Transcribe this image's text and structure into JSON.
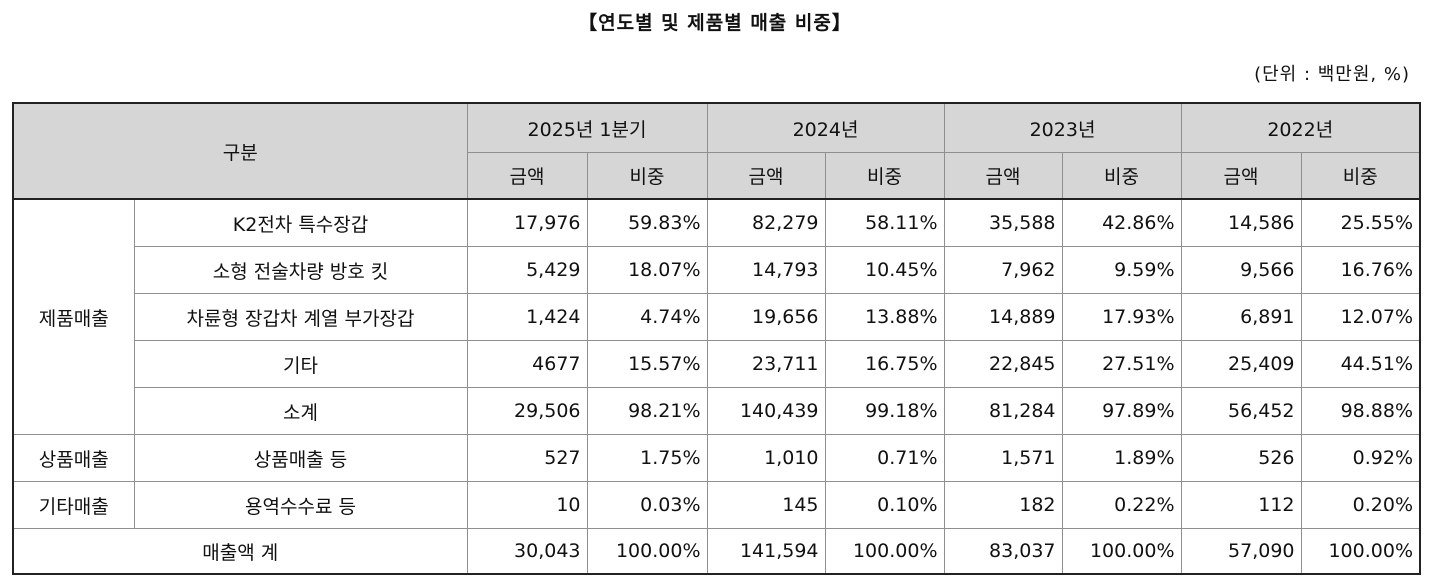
{
  "title": "【연도별 및 제품별 매출 비중】",
  "unit": "(단위 : 백만원, %)",
  "header": {
    "category": "구분",
    "periods": [
      "2025년 1분기",
      "2024년",
      "2023년",
      "2022년"
    ],
    "amount": "금액",
    "share": "비중"
  },
  "groups": {
    "product": "제품매출",
    "goods": "상품매출",
    "other": "기타매출"
  },
  "rows": [
    {
      "label": "K2전차 특수장갑",
      "cells": [
        "17,976",
        "59.83%",
        "82,279",
        "58.11%",
        "35,588",
        "42.86%",
        "14,586",
        "25.55%"
      ]
    },
    {
      "label": "소형 전술차량 방호 킷",
      "cells": [
        "5,429",
        "18.07%",
        "14,793",
        "10.45%",
        "7,962",
        "9.59%",
        "9,566",
        "16.76%"
      ]
    },
    {
      "label": "차륜형 장갑차 계열 부가장갑",
      "cells": [
        "1,424",
        "4.74%",
        "19,656",
        "13.88%",
        "14,889",
        "17.93%",
        "6,891",
        "12.07%"
      ]
    },
    {
      "label": "기타",
      "cells": [
        "4677",
        "15.57%",
        "23,711",
        "16.75%",
        "22,845",
        "27.51%",
        "25,409",
        "44.51%"
      ]
    },
    {
      "label": "소계",
      "cells": [
        "29,506",
        "98.21%",
        "140,439",
        "99.18%",
        "81,284",
        "97.89%",
        "56,452",
        "98.88%"
      ]
    },
    {
      "label": "상품매출 등",
      "cells": [
        "527",
        "1.75%",
        "1,010",
        "0.71%",
        "1,571",
        "1.89%",
        "526",
        "0.92%"
      ]
    },
    {
      "label": "용역수수료 등",
      "cells": [
        "10",
        "0.03%",
        "145",
        "0.10%",
        "182",
        "0.22%",
        "112",
        "0.20%"
      ]
    }
  ],
  "total": {
    "label": "매출액 계",
    "cells": [
      "30,043",
      "100.00%",
      "141,594",
      "100.00%",
      "83,037",
      "100.00%",
      "57,090",
      "100.00%"
    ]
  }
}
